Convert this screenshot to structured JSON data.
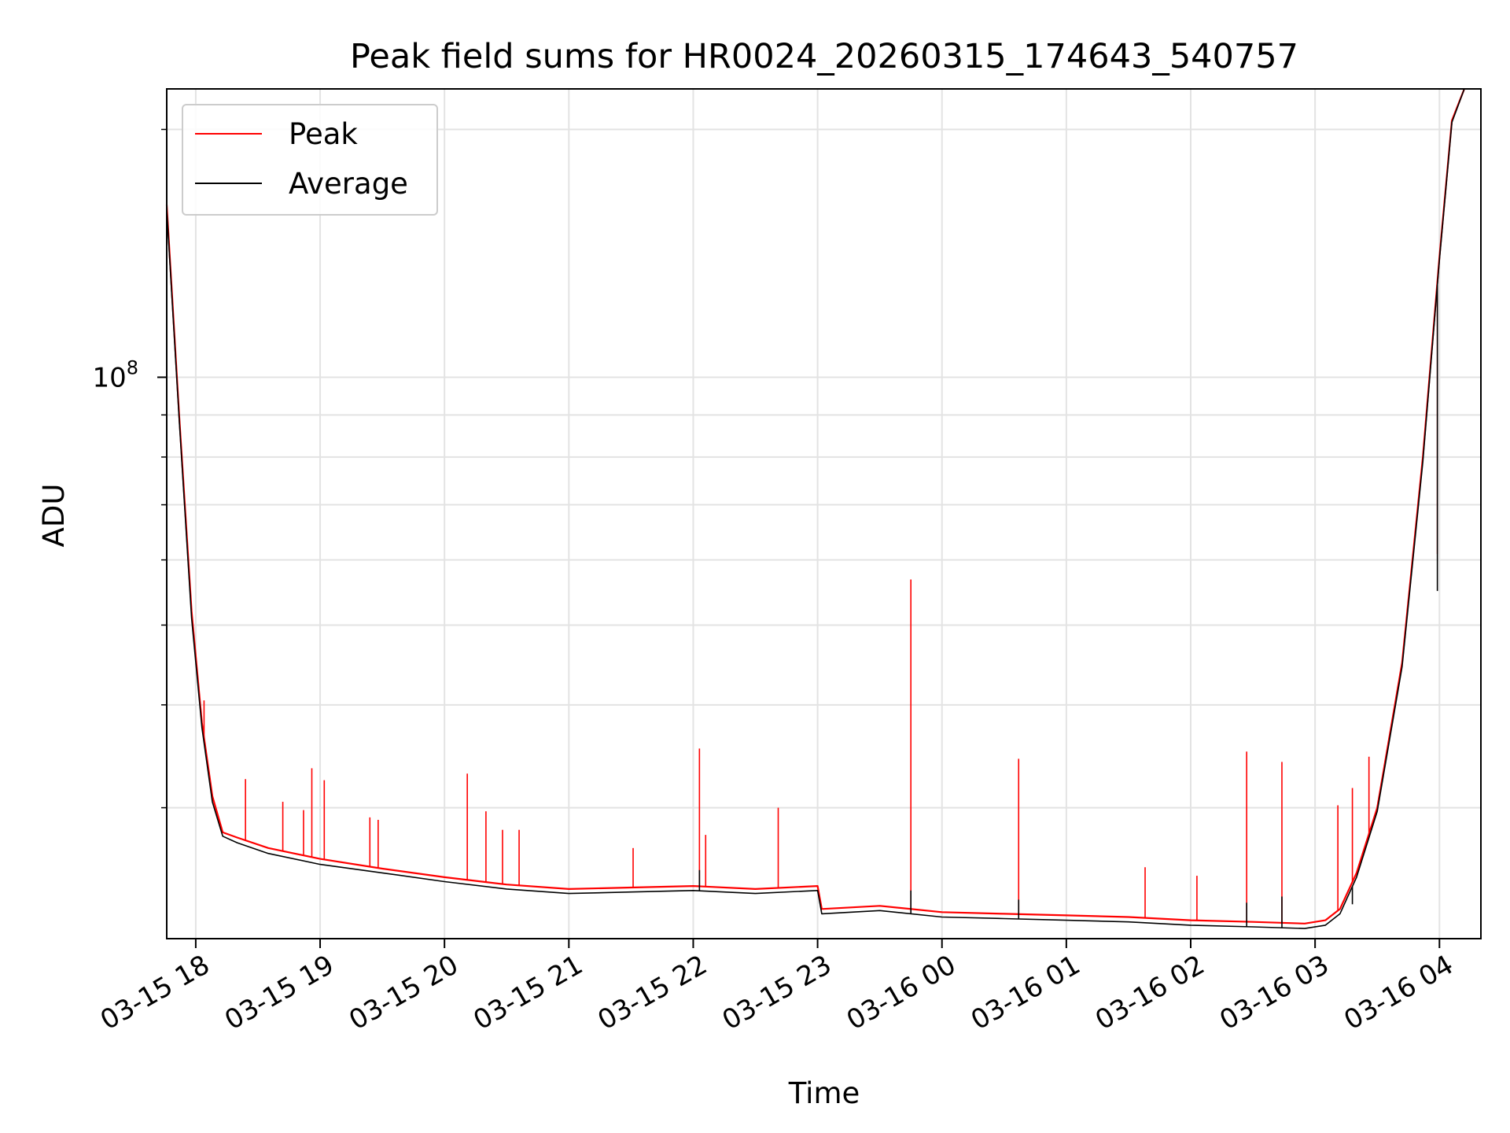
{
  "chart_data": {
    "type": "line",
    "title": "Peak field sums for HR0024_20260315_174643_540757",
    "xlabel": "Time",
    "ylabel": "ADU",
    "yscale": "log",
    "grid": true,
    "legend_position": "top-left",
    "xlim": [
      "2026-03-15 17:46",
      "2026-03-16 04:20"
    ],
    "ylim": [
      20800000,
      224000000
    ],
    "x_ticks": [
      "03-15 18",
      "03-15 19",
      "03-15 20",
      "03-15 21",
      "03-15 22",
      "03-15 23",
      "03-16 00",
      "03-16 01",
      "03-16 02",
      "03-16 03",
      "03-16 04"
    ],
    "y_tick_label": {
      "base": "10",
      "exponent": "8"
    },
    "series": [
      {
        "name": "Peak",
        "color": "#ff0000",
        "points": [
          [
            "03-15 17:46",
            162000000
          ],
          [
            "03-15 17:52",
            90000000
          ],
          [
            "03-15 17:58",
            52000000
          ],
          [
            "03-15 18:03",
            38000000
          ],
          [
            "03-15 18:08",
            31000000
          ],
          [
            "03-15 18:13",
            28000000
          ],
          [
            "03-15 18:20",
            27600000
          ],
          [
            "03-15 18:35",
            26800000
          ],
          [
            "03-15 19:00",
            26000000
          ],
          [
            "03-15 19:30",
            25300000
          ],
          [
            "03-15 20:00",
            24700000
          ],
          [
            "03-15 20:30",
            24200000
          ],
          [
            "03-15 21:00",
            23900000
          ],
          [
            "03-15 21:30",
            24000000
          ],
          [
            "03-15 22:00",
            24100000
          ],
          [
            "03-15 22:30",
            23900000
          ],
          [
            "03-15 23:00",
            24100000
          ],
          [
            "03-15 23:02",
            22600000
          ],
          [
            "03-15 23:30",
            22800000
          ],
          [
            "03-16 00:00",
            22400000
          ],
          [
            "03-16 00:30",
            22300000
          ],
          [
            "03-16 01:00",
            22200000
          ],
          [
            "03-16 01:30",
            22100000
          ],
          [
            "03-16 02:00",
            21900000
          ],
          [
            "03-16 02:30",
            21800000
          ],
          [
            "03-16 02:55",
            21700000
          ],
          [
            "03-16 03:05",
            21900000
          ],
          [
            "03-16 03:12",
            22600000
          ],
          [
            "03-16 03:20",
            25000000
          ],
          [
            "03-16 03:30",
            30000000
          ],
          [
            "03-16 03:42",
            45000000
          ],
          [
            "03-16 03:52",
            80000000
          ],
          [
            "03-16 04:00",
            140000000
          ],
          [
            "03-16 04:06",
            205000000
          ],
          [
            "03-16 04:12",
            230000000
          ]
        ],
        "spikes": [
          [
            "03-15 18:04",
            40500000
          ],
          [
            "03-15 18:24",
            32500000
          ],
          [
            "03-15 18:42",
            30500000
          ],
          [
            "03-15 18:52",
            29800000
          ],
          [
            "03-15 18:56",
            33500000
          ],
          [
            "03-15 19:02",
            32400000
          ],
          [
            "03-15 19:24",
            29200000
          ],
          [
            "03-15 19:28",
            29000000
          ],
          [
            "03-15 20:11",
            33000000
          ],
          [
            "03-15 20:20",
            29700000
          ],
          [
            "03-15 20:28",
            28200000
          ],
          [
            "03-15 20:36",
            28200000
          ],
          [
            "03-15 21:31",
            26800000
          ],
          [
            "03-15 22:03",
            35400000
          ],
          [
            "03-15 22:06",
            27800000
          ],
          [
            "03-15 22:41",
            30000000
          ],
          [
            "03-15 23:45",
            56800000
          ],
          [
            "03-16 00:37",
            34400000
          ],
          [
            "03-16 01:38",
            25400000
          ],
          [
            "03-16 02:03",
            24800000
          ],
          [
            "03-16 02:27",
            35100000
          ],
          [
            "03-16 02:44",
            34100000
          ],
          [
            "03-16 03:11",
            30200000
          ],
          [
            "03-16 03:18",
            31700000
          ],
          [
            "03-16 03:26",
            34600000
          ],
          [
            "03-16 03:59",
            61000000
          ]
        ]
      },
      {
        "name": "Average",
        "color": "#000000",
        "points": [
          [
            "03-15 17:46",
            160000000
          ],
          [
            "03-15 17:52",
            89000000
          ],
          [
            "03-15 17:58",
            51000000
          ],
          [
            "03-15 18:03",
            37500000
          ],
          [
            "03-15 18:08",
            30500000
          ],
          [
            "03-15 18:13",
            27700000
          ],
          [
            "03-15 18:20",
            27200000
          ],
          [
            "03-15 18:35",
            26400000
          ],
          [
            "03-15 19:00",
            25600000
          ],
          [
            "03-15 19:30",
            25000000
          ],
          [
            "03-15 20:00",
            24400000
          ],
          [
            "03-15 20:30",
            23900000
          ],
          [
            "03-15 21:00",
            23600000
          ],
          [
            "03-15 21:30",
            23700000
          ],
          [
            "03-15 22:00",
            23800000
          ],
          [
            "03-15 22:30",
            23600000
          ],
          [
            "03-15 23:00",
            23800000
          ],
          [
            "03-15 23:02",
            22300000
          ],
          [
            "03-15 23:30",
            22500000
          ],
          [
            "03-16 00:00",
            22100000
          ],
          [
            "03-16 00:30",
            22000000
          ],
          [
            "03-16 01:00",
            21900000
          ],
          [
            "03-16 01:30",
            21800000
          ],
          [
            "03-16 02:00",
            21600000
          ],
          [
            "03-16 02:30",
            21500000
          ],
          [
            "03-16 02:55",
            21400000
          ],
          [
            "03-16 03:05",
            21600000
          ],
          [
            "03-16 03:12",
            22300000
          ],
          [
            "03-16 03:20",
            24700000
          ],
          [
            "03-16 03:30",
            29700000
          ],
          [
            "03-16 03:42",
            44500000
          ],
          [
            "03-16 03:52",
            79000000
          ],
          [
            "03-16 04:00",
            139000000
          ],
          [
            "03-16 04:06",
            204000000
          ],
          [
            "03-16 04:12",
            230000000
          ]
        ],
        "spikes": [
          [
            "03-15 22:03",
            25200000
          ],
          [
            "03-15 23:45",
            23800000
          ],
          [
            "03-16 00:37",
            23200000
          ],
          [
            "03-16 02:27",
            23000000
          ],
          [
            "03-16 02:44",
            23400000
          ],
          [
            "03-16 03:18",
            22900000
          ],
          [
            "03-16 03:59",
            55000000
          ]
        ]
      }
    ]
  }
}
